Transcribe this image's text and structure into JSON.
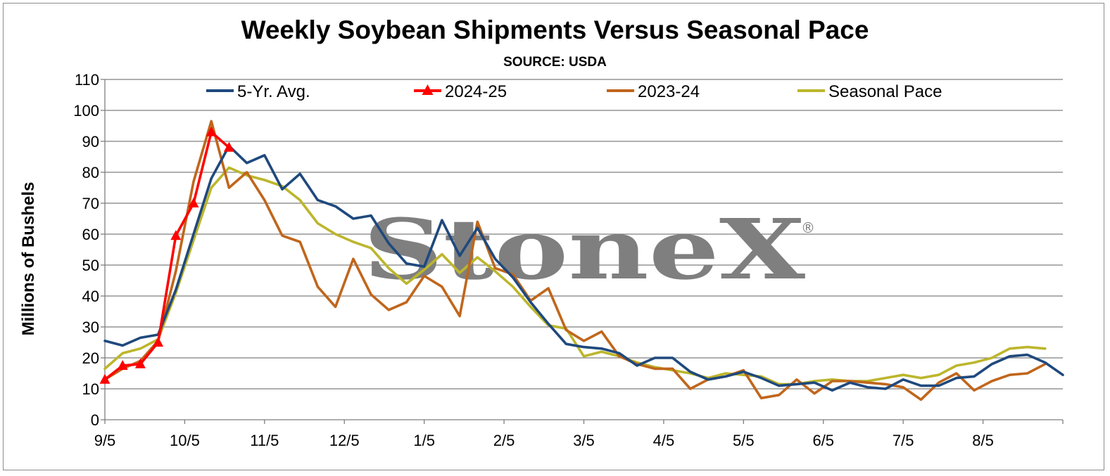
{
  "chart_data": {
    "type": "line",
    "title": "Weekly Soybean Shipments Versus Seasonal Pace",
    "subtitle": "SOURCE: USDA",
    "xlabel": "",
    "ylabel": "Millions of Bushels",
    "ylim": [
      0,
      110
    ],
    "yticks": [
      0,
      10,
      20,
      30,
      40,
      50,
      60,
      70,
      80,
      90,
      100,
      110
    ],
    "xticks": [
      "9/5",
      "10/5",
      "11/5",
      "12/5",
      "1/5",
      "2/5",
      "3/5",
      "4/5",
      "5/5",
      "6/5",
      "7/5",
      "8/5"
    ],
    "grid": "horizontal",
    "legend": "top",
    "watermark": "StoneX",
    "watermark_mark": "®",
    "series": [
      {
        "name": "5-Yr. Avg.",
        "color": "#1f497d",
        "marker": "none",
        "values": [
          25.5,
          24.0,
          26.5,
          27.5,
          42.0,
          60.0,
          78.0,
          88.5,
          83.0,
          85.5,
          74.5,
          79.5,
          71.0,
          69.0,
          65.0,
          66.0,
          57.0,
          50.5,
          49.5,
          64.5,
          53.0,
          62.0,
          52.0,
          46.0,
          38.0,
          31.0,
          24.5,
          23.5,
          23.0,
          21.5,
          17.5,
          20.0,
          20.0,
          15.5,
          13.0,
          14.0,
          15.5,
          13.5,
          11.0,
          11.5,
          12.0,
          9.5,
          12.0,
          10.5,
          10.0,
          13.0,
          11.0,
          11.0,
          13.5,
          14.0,
          18.0,
          20.5,
          21.0,
          18.5,
          14.5
        ]
      },
      {
        "name": "2024-25",
        "color": "#ff0000",
        "marker": "triangle",
        "values": [
          13.0,
          17.5,
          18.0,
          25.0,
          59.5,
          70.0,
          93.0,
          88.0
        ]
      },
      {
        "name": "2023-24",
        "color": "#c0661c",
        "marker": "none",
        "values": [
          13.0,
          16.5,
          19.0,
          25.5,
          48.0,
          77.0,
          96.5,
          75.0,
          80.0,
          71.0,
          59.5,
          57.5,
          43.0,
          36.5,
          52.0,
          40.5,
          35.5,
          38.0,
          46.5,
          43.0,
          33.5,
          64.0,
          49.0,
          47.0,
          38.5,
          42.5,
          29.0,
          25.5,
          28.5,
          20.5,
          18.0,
          16.5,
          16.5,
          10.0,
          13.0,
          14.0,
          16.0,
          7.0,
          8.0,
          13.0,
          8.5,
          12.5,
          12.5,
          12.0,
          11.5,
          10.5,
          6.5,
          12.0,
          15.0,
          9.5,
          12.5,
          14.5,
          15.0,
          18.0
        ]
      },
      {
        "name": "Seasonal Pace",
        "color": "#bcb62c",
        "marker": "none",
        "values": [
          16.5,
          21.5,
          23.0,
          26.0,
          41.0,
          58.0,
          75.0,
          81.5,
          79.0,
          77.5,
          75.5,
          71.0,
          63.5,
          60.0,
          57.5,
          55.5,
          49.0,
          44.0,
          48.5,
          53.5,
          47.5,
          52.5,
          48.0,
          43.0,
          36.5,
          30.5,
          29.5,
          20.5,
          22.0,
          20.5,
          18.5,
          17.0,
          16.0,
          15.0,
          13.5,
          15.0,
          14.5,
          14.0,
          11.5,
          11.5,
          12.5,
          13.0,
          12.5,
          12.5,
          13.5,
          14.5,
          13.5,
          14.5,
          17.5,
          18.5,
          20.0,
          23.0,
          23.5,
          23.0
        ]
      }
    ]
  }
}
